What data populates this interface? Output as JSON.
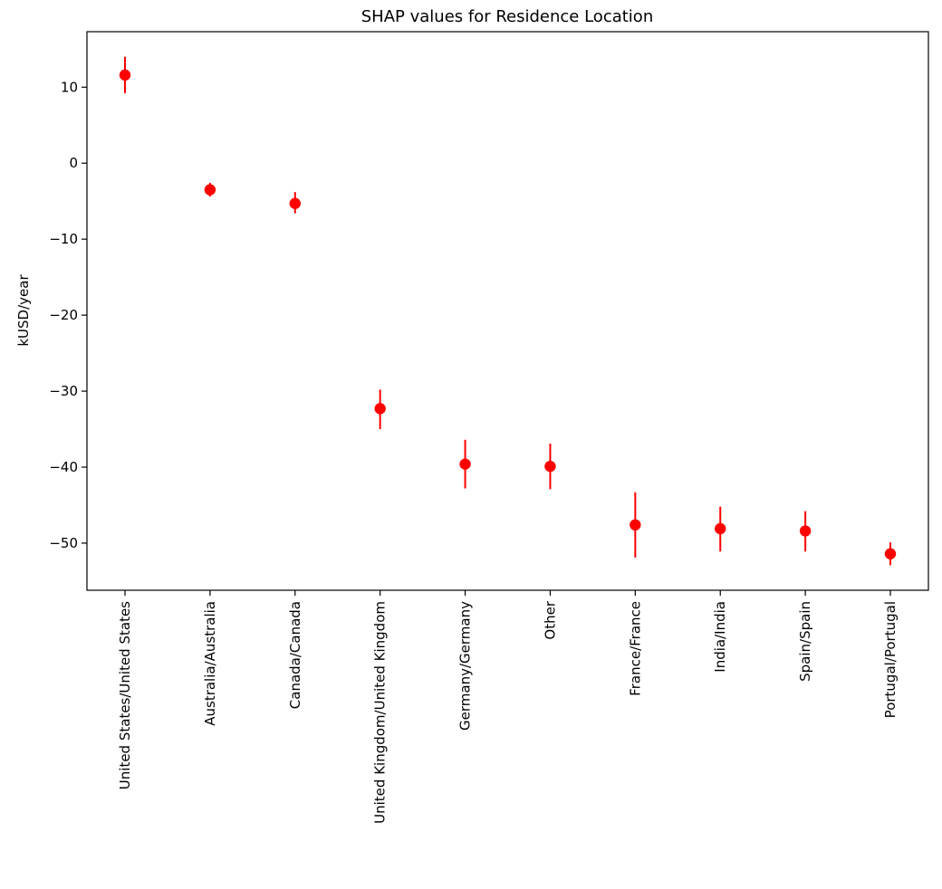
{
  "chart_data": {
    "type": "scatter",
    "title": "SHAP values for Residence Location",
    "xlabel": "",
    "ylabel": "kUSD/year",
    "categories": [
      "United States/United States",
      "Australia/Australia",
      "Canada/Canada",
      "United Kingdom/United Kingdom",
      "Germany/Germany",
      "Other",
      "France/France",
      "India/India",
      "Spain/Spain",
      "Portugal/Portugal"
    ],
    "series": [
      {
        "name": "SHAP value",
        "values": [
          11.6,
          -3.5,
          -5.3,
          -32.3,
          -39.6,
          -39.9,
          -47.6,
          -48.1,
          -48.4,
          -51.4
        ],
        "error_low": [
          9.2,
          -4.4,
          -6.6,
          -35.0,
          -42.8,
          -42.9,
          -51.9,
          -51.1,
          -51.1,
          -52.9
        ],
        "error_high": [
          14.0,
          -2.6,
          -3.8,
          -29.8,
          -36.4,
          -36.9,
          -43.3,
          -45.2,
          -45.8,
          -49.9
        ]
      }
    ],
    "yticks": [
      10,
      0,
      -10,
      -20,
      -30,
      -40,
      -50
    ],
    "ytick_labels": [
      "10",
      "0",
      "−10",
      "−20",
      "−30",
      "−40",
      "−50"
    ],
    "ylim": [
      -56.2,
      17.3
    ],
    "grid": false,
    "colors": {
      "marker": "#ff0000",
      "errorbar": "#ff0000",
      "axes": "#000000",
      "background": "#ffffff"
    }
  }
}
